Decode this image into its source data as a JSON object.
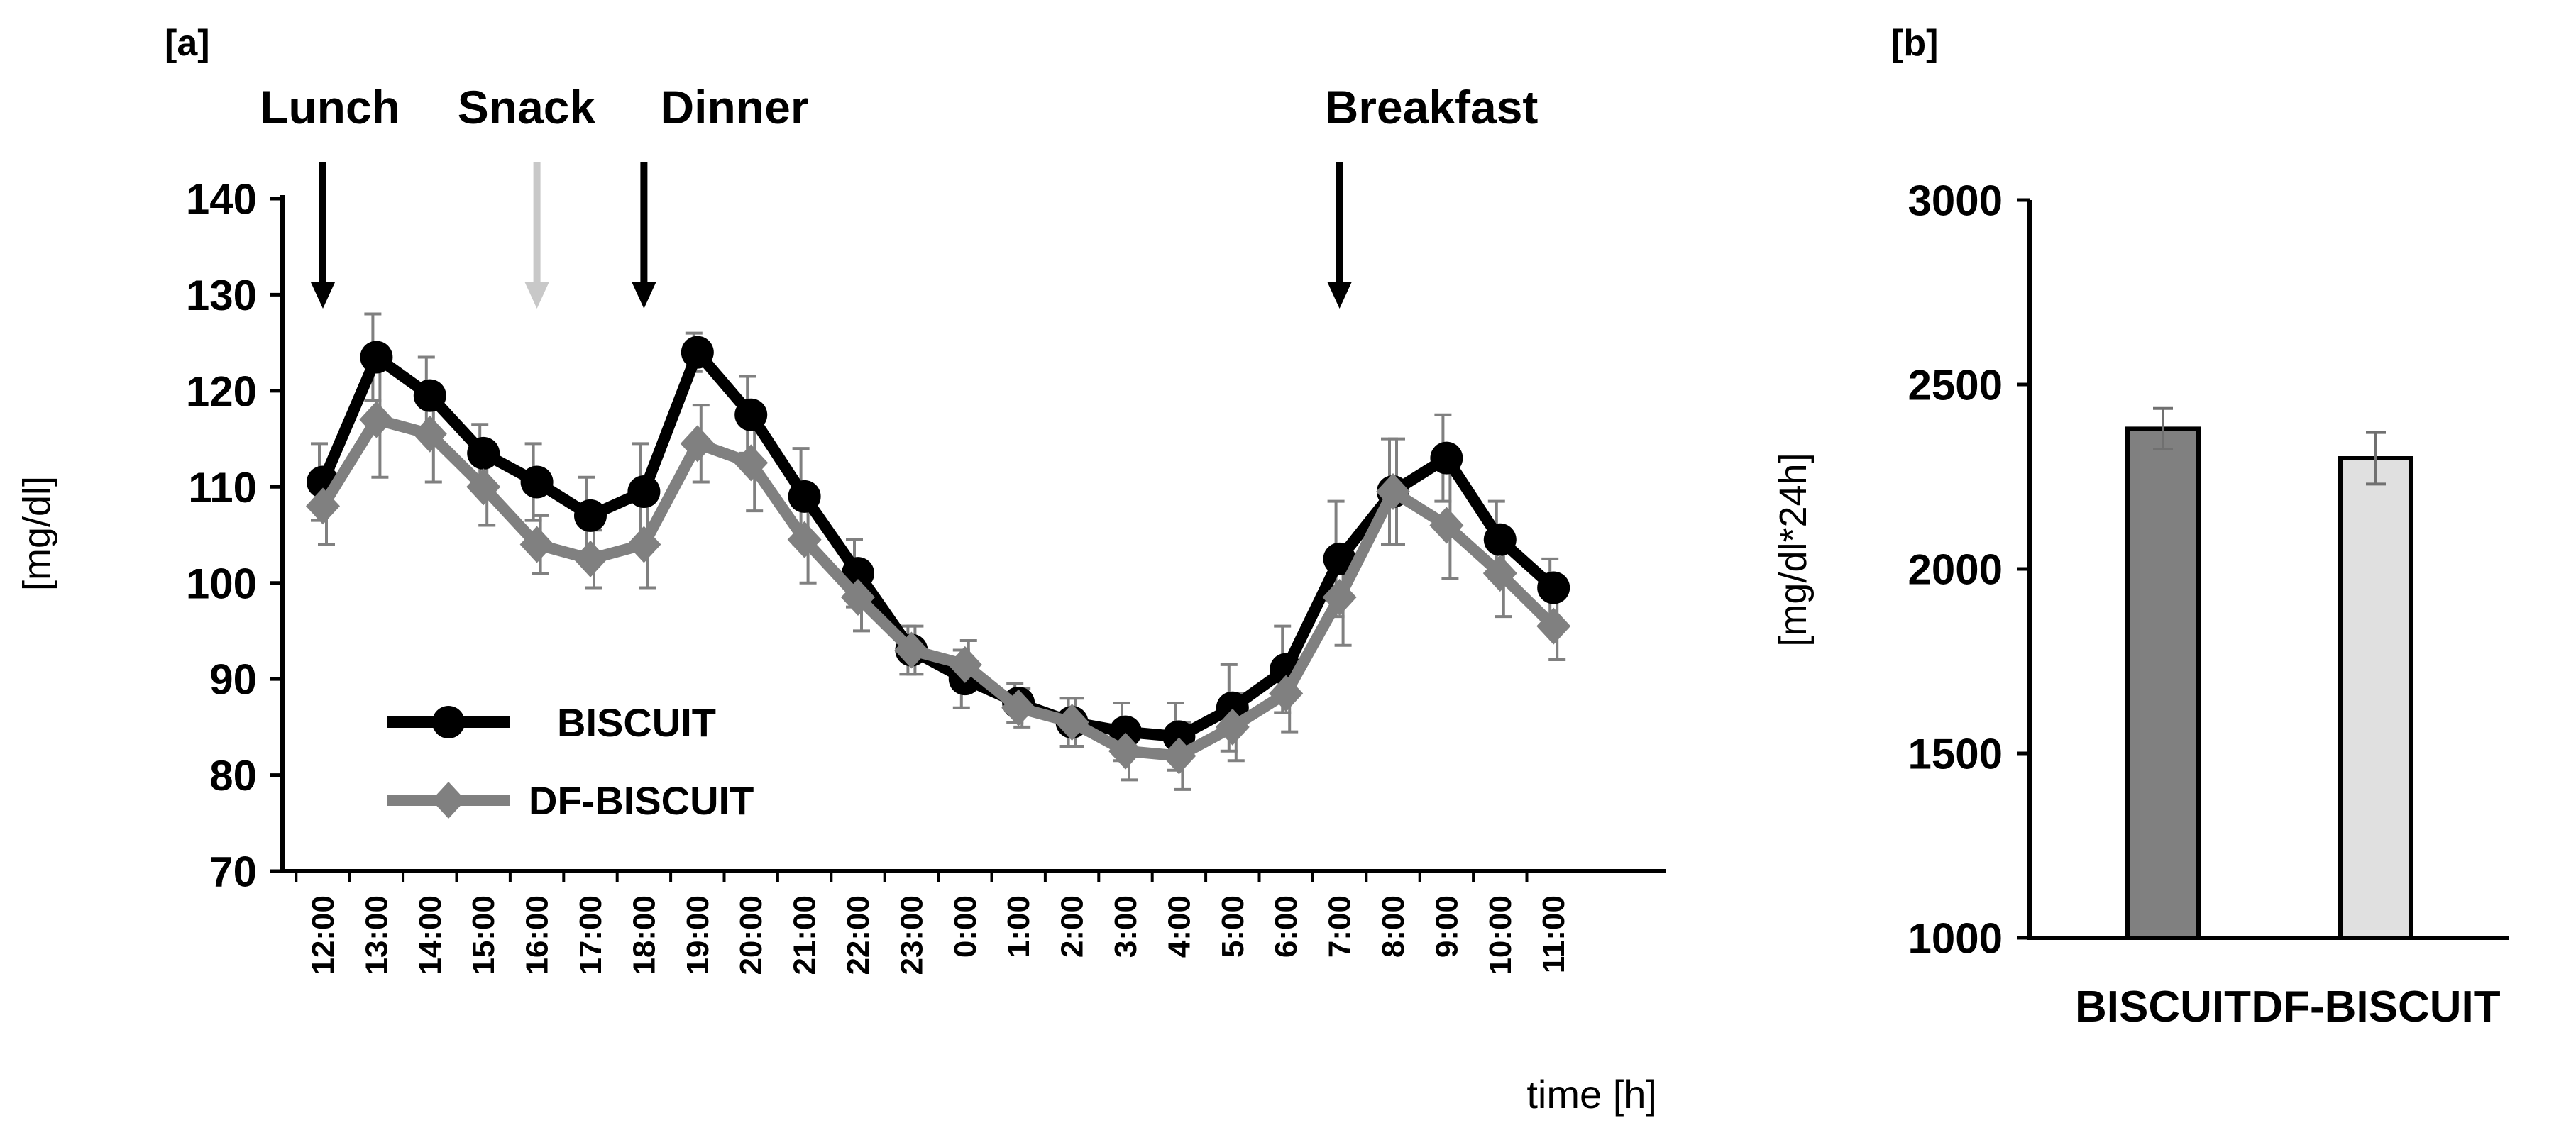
{
  "chart_data": [
    {
      "panel_label": "[a]",
      "type": "line",
      "ylabel": "[mg/dl]",
      "xlabel": "time [h]",
      "ylim": [
        70,
        140
      ],
      "yticks": [
        70,
        80,
        90,
        100,
        110,
        120,
        130,
        140
      ],
      "categories": [
        "12:00",
        "13:00",
        "14:00",
        "15:00",
        "16:00",
        "17:00",
        "18:00",
        "19:00",
        "20:00",
        "21:00",
        "22:00",
        "23:00",
        "0:00",
        "1:00",
        "2:00",
        "3:00",
        "4:00",
        "5:00",
        "6:00",
        "7:00",
        "8:00",
        "9:00",
        "10:00",
        "11:00"
      ],
      "series": [
        {
          "name": "BISCUIT",
          "color": "#000000",
          "marker": "circle",
          "values": [
            110.5,
            123.5,
            119.5,
            113.5,
            110.5,
            107,
            109.5,
            124,
            117.5,
            109,
            101,
            93,
            90,
            87.5,
            85.5,
            84.5,
            84,
            87,
            91,
            102.5,
            109.5,
            113,
            104.5,
            99.5
          ],
          "errors": [
            4,
            4.5,
            4,
            3,
            4,
            4,
            5,
            2,
            4,
            5,
            3.5,
            2.5,
            3,
            2,
            2.5,
            3,
            3.5,
            4.5,
            4.5,
            6,
            5.5,
            4.5,
            4,
            3
          ]
        },
        {
          "name": "DF-BISCUIT",
          "color": "#808080",
          "marker": "diamond",
          "values": [
            108,
            117,
            115.5,
            110,
            104,
            102.5,
            104,
            114.5,
            112.5,
            104.5,
            98.5,
            93,
            91.5,
            87,
            85.5,
            82.5,
            82,
            85,
            88.5,
            98.5,
            109.5,
            106,
            101,
            95.5
          ],
          "errors": [
            4,
            6,
            5,
            4,
            3,
            3,
            4.5,
            4,
            5,
            4.5,
            3.5,
            2.5,
            2.5,
            2,
            2.5,
            3,
            3.5,
            3.5,
            4,
            5,
            5.5,
            5.5,
            4.5,
            3.5
          ]
        }
      ],
      "annotations": [
        {
          "label": "Lunch",
          "at": "12:00",
          "color": "#000000"
        },
        {
          "label": "Snack",
          "at": "16:00",
          "color": "#c8c8c8"
        },
        {
          "label": "Dinner",
          "at": "18:00",
          "color": "#000000"
        },
        {
          "label": "Breakfast",
          "at": "7:00",
          "color": "#000000"
        }
      ],
      "legend": "bottom-left"
    },
    {
      "panel_label": "[b]",
      "type": "bar",
      "ylabel": "[mg/dl*24h]",
      "ylim": [
        1000,
        3000
      ],
      "yticks": [
        1000,
        1500,
        2000,
        2500,
        3000
      ],
      "categories": [
        "BISCUIT",
        "DF-BISCUIT"
      ],
      "values": [
        2380,
        2300
      ],
      "errors": [
        55,
        70
      ],
      "colors": [
        "#808080",
        "#e0e0e0"
      ]
    }
  ]
}
